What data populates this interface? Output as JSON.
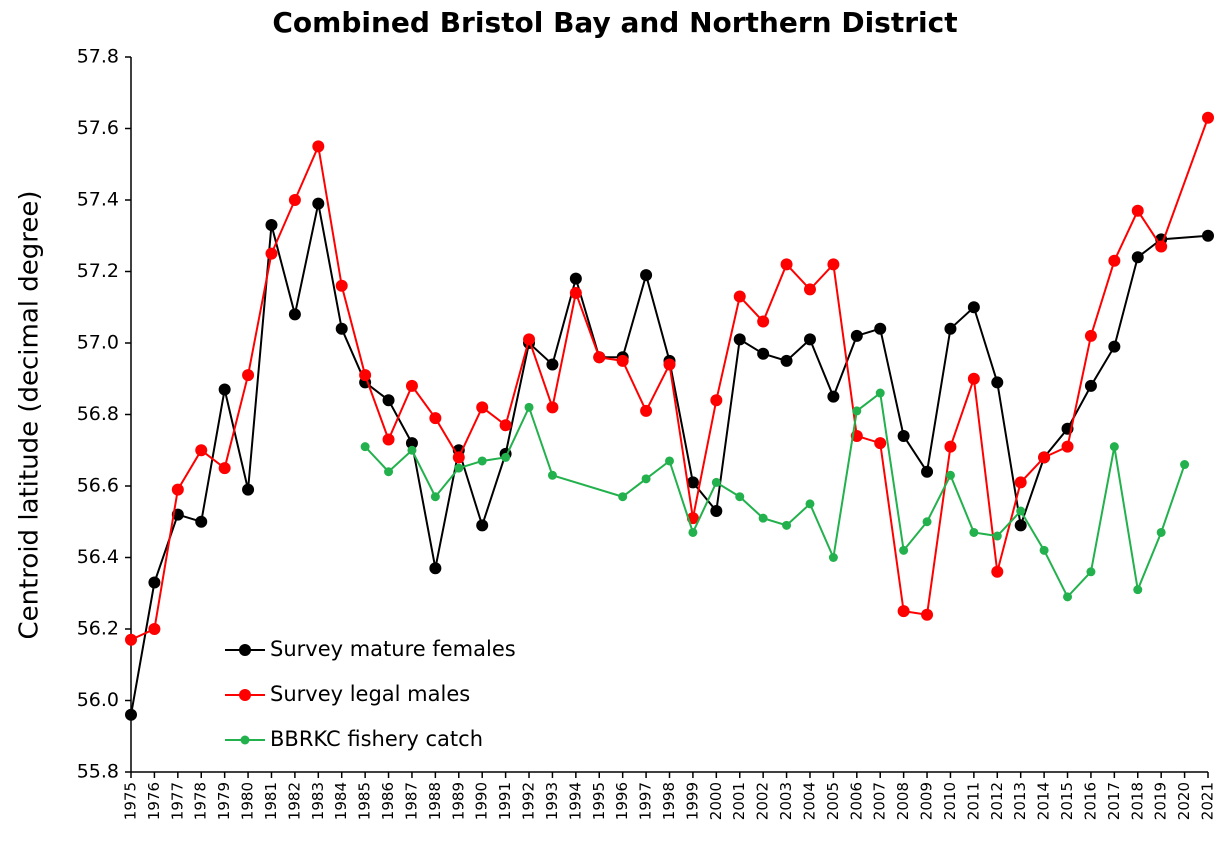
{
  "chart_data": {
    "type": "line",
    "title": "Combined Bristol Bay and Northern District",
    "y_label": "Centroid latitude (decimal degree)",
    "xlim": [
      1975,
      2021
    ],
    "xticks": [
      1975,
      1976,
      1977,
      1978,
      1979,
      1980,
      1981,
      1982,
      1983,
      1984,
      1985,
      1986,
      1987,
      1988,
      1989,
      1990,
      1991,
      1992,
      1993,
      1994,
      1995,
      1996,
      1997,
      1998,
      1999,
      2000,
      2001,
      2002,
      2003,
      2004,
      2005,
      2006,
      2007,
      2008,
      2009,
      2010,
      2011,
      2012,
      2013,
      2014,
      2015,
      2016,
      2017,
      2018,
      2019,
      2020,
      2021
    ],
    "ylim": [
      55.8,
      57.8
    ],
    "yticks": [
      {
        "value": 55.8,
        "label": "55.8"
      },
      {
        "value": 56,
        "label": "56.0"
      },
      {
        "value": 56.2,
        "label": "56.2"
      },
      {
        "value": 56.4,
        "label": "56.4"
      },
      {
        "value": 56.6,
        "label": "56.6"
      },
      {
        "value": 56.8,
        "label": "56.8"
      },
      {
        "value": 57,
        "label": "57.0"
      },
      {
        "value": 57.2,
        "label": "57.2"
      },
      {
        "value": 57.4,
        "label": "57.4"
      },
      {
        "value": 57.6,
        "label": "57.6"
      },
      {
        "value": 57.8,
        "label": "57.8"
      }
    ],
    "grid": false,
    "legend": "lower left",
    "series": [
      {
        "name": "Survey mature females",
        "color": "#000000",
        "x": [
          1975,
          1976,
          1977,
          1978,
          1979,
          1980,
          1981,
          1982,
          1983,
          1984,
          1985,
          1986,
          1987,
          1988,
          1989,
          1990,
          1991,
          1992,
          1993,
          1994,
          1995,
          1996,
          1997,
          1998,
          1999,
          2000,
          2001,
          2002,
          2003,
          2004,
          2005,
          2006,
          2007,
          2008,
          2009,
          2010,
          2011,
          2012,
          2013,
          2014,
          2015,
          2016,
          2017,
          2018,
          2019,
          2021
        ],
        "values": [
          55.96,
          56.33,
          56.52,
          56.5,
          56.87,
          56.59,
          57.33,
          57.08,
          57.39,
          57.04,
          56.89,
          56.84,
          56.72,
          56.37,
          56.7,
          56.49,
          56.69,
          57.0,
          56.94,
          57.18,
          56.96,
          56.96,
          57.19,
          56.95,
          56.61,
          56.53,
          57.01,
          56.97,
          56.95,
          57.01,
          56.85,
          57.02,
          57.04,
          56.74,
          56.64,
          57.04,
          57.1,
          56.89,
          56.49,
          56.68,
          56.76,
          56.88,
          56.99,
          57.24,
          57.29,
          57.3
        ]
      },
      {
        "name": "Survey legal males",
        "color": "#ff0000",
        "x": [
          1975,
          1976,
          1977,
          1978,
          1979,
          1980,
          1981,
          1982,
          1983,
          1984,
          1985,
          1986,
          1987,
          1988,
          1989,
          1990,
          1991,
          1992,
          1993,
          1994,
          1995,
          1996,
          1997,
          1998,
          1999,
          2000,
          2001,
          2002,
          2003,
          2004,
          2005,
          2006,
          2007,
          2008,
          2009,
          2010,
          2011,
          2012,
          2013,
          2014,
          2015,
          2016,
          2017,
          2018,
          2019,
          2021
        ],
        "values": [
          56.17,
          56.2,
          56.59,
          56.7,
          56.65,
          56.91,
          57.25,
          57.4,
          57.55,
          57.16,
          56.91,
          56.73,
          56.88,
          56.79,
          56.68,
          56.82,
          56.77,
          57.01,
          56.82,
          57.14,
          56.96,
          56.95,
          56.81,
          56.94,
          56.51,
          56.84,
          57.13,
          57.06,
          57.22,
          57.15,
          57.22,
          56.74,
          56.72,
          56.25,
          56.24,
          56.71,
          56.9,
          56.36,
          56.61,
          56.68,
          56.71,
          57.02,
          57.23,
          57.37,
          57.27,
          57.63
        ]
      },
      {
        "name": "BBRKC fishery catch",
        "color": "#22b14c",
        "x": [
          1985,
          1986,
          1987,
          1988,
          1989,
          1990,
          1991,
          1992,
          1993,
          1996,
          1997,
          1998,
          1999,
          2000,
          2001,
          2002,
          2003,
          2004,
          2005,
          2006,
          2007,
          2008,
          2009,
          2010,
          2011,
          2012,
          2013,
          2014,
          2015,
          2016,
          2017,
          2018,
          2019,
          2020
        ],
        "values": [
          56.71,
          56.64,
          56.7,
          56.57,
          56.65,
          56.67,
          56.68,
          56.82,
          56.63,
          56.57,
          56.62,
          56.67,
          56.47,
          56.61,
          56.57,
          56.51,
          56.49,
          56.55,
          56.4,
          56.81,
          56.86,
          56.42,
          56.5,
          56.63,
          56.47,
          56.46,
          56.53,
          56.42,
          56.29,
          56.36,
          56.71,
          56.31,
          56.47,
          56.66
        ]
      }
    ]
  }
}
